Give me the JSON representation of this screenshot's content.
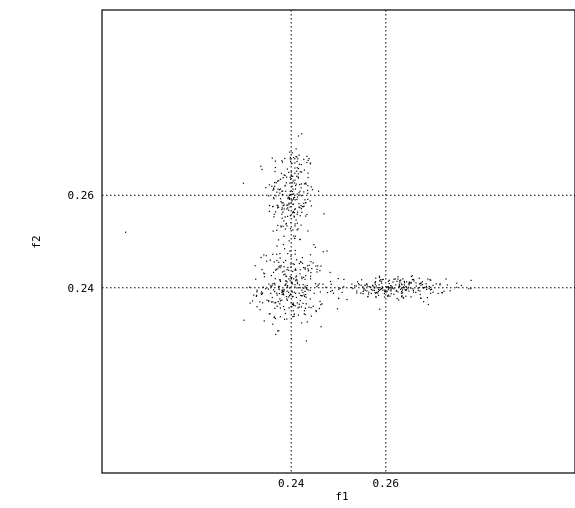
{
  "chart_data": {
    "type": "scatter",
    "xlabel": "f1",
    "ylabel": "f2",
    "x_ticks": [
      "0.24",
      "0.26"
    ],
    "y_ticks": [
      "0.26",
      "0.24"
    ],
    "x_tick_values": [
      0.24,
      0.26
    ],
    "y_tick_values": [
      0.26,
      0.24
    ],
    "xlim": [
      0.2,
      0.3
    ],
    "ylim": [
      0.2,
      0.3
    ],
    "grid": "dotted lines at tick values",
    "clusters": [
      {
        "center": [
          0.24,
          0.26
        ],
        "spread": [
          0.0025,
          0.0055
        ],
        "count": 240
      },
      {
        "center": [
          0.24,
          0.24
        ],
        "spread": [
          0.0035,
          0.004
        ],
        "count": 300
      },
      {
        "center": [
          0.2615,
          0.24
        ],
        "spread": [
          0.0055,
          0.0012
        ],
        "count": 230
      }
    ],
    "outliers": [
      [
        0.205,
        0.252
      ],
      [
        0.23,
        0.233
      ],
      [
        0.268,
        0.237
      ],
      [
        0.276,
        0.2405
      ],
      [
        0.27,
        0.2405
      ],
      [
        0.275,
        0.241
      ],
      [
        0.258,
        0.238
      ],
      [
        0.237,
        0.249
      ],
      [
        0.236,
        0.268
      ]
    ],
    "marker_color": "#000000"
  }
}
